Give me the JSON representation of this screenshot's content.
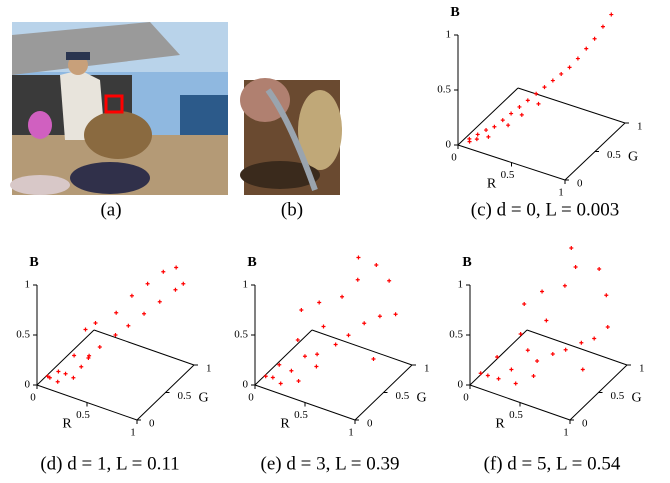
{
  "images": [
    {
      "caption": "(a)"
    },
    {
      "caption": "(b)"
    }
  ],
  "chart_data": [
    {
      "type": "scatter3d",
      "caption": "(c) d = 0, L = 0.003",
      "xlabel": "R",
      "ylabel": "G",
      "zlabel": "B",
      "color": "#ff0000",
      "xlim": [
        0,
        1
      ],
      "ylim": [
        0,
        1
      ],
      "zlim": [
        0,
        1
      ],
      "xticks": [
        0,
        0.5,
        1
      ],
      "yticks": [
        0,
        0.5,
        1
      ],
      "zticks": [
        0,
        0.5,
        1
      ],
      "points": [
        [
          0.05,
          0.1,
          0.02
        ],
        [
          0.1,
          0.15,
          0.05
        ],
        [
          0.15,
          0.2,
          0.08
        ],
        [
          0.2,
          0.25,
          0.1
        ],
        [
          0.25,
          0.3,
          0.15
        ],
        [
          0.3,
          0.35,
          0.2
        ],
        [
          0.35,
          0.4,
          0.25
        ],
        [
          0.4,
          0.45,
          0.3
        ],
        [
          0.45,
          0.5,
          0.35
        ],
        [
          0.5,
          0.55,
          0.4
        ],
        [
          0.55,
          0.6,
          0.45
        ],
        [
          0.6,
          0.65,
          0.5
        ],
        [
          0.65,
          0.7,
          0.55
        ],
        [
          0.7,
          0.75,
          0.62
        ],
        [
          0.75,
          0.8,
          0.7
        ],
        [
          0.8,
          0.85,
          0.78
        ],
        [
          0.85,
          0.9,
          0.88
        ],
        [
          0.9,
          0.95,
          0.98
        ],
        [
          0.12,
          0.1,
          0.04
        ],
        [
          0.08,
          0.05,
          0.03
        ],
        [
          0.2,
          0.15,
          0.06
        ],
        [
          0.3,
          0.3,
          0.12
        ],
        [
          0.4,
          0.35,
          0.22
        ],
        [
          0.5,
          0.45,
          0.3
        ]
      ]
    },
    {
      "type": "scatter3d",
      "caption": "(d) d = 1, L = 0.11",
      "xlabel": "R",
      "ylabel": "G",
      "zlabel": "B",
      "color": "#ff0000",
      "xlim": [
        0,
        1
      ],
      "ylim": [
        0,
        1
      ],
      "zlim": [
        0,
        1
      ],
      "xticks": [
        0,
        0.5,
        1
      ],
      "yticks": [
        0,
        0.5,
        1
      ],
      "zticks": [
        0,
        0.5,
        1
      ],
      "points": [
        [
          0.05,
          0.1,
          0.05
        ],
        [
          0.1,
          0.05,
          0.08
        ],
        [
          0.15,
          0.1,
          0.03
        ],
        [
          0.2,
          0.15,
          0.1
        ],
        [
          0.1,
          0.2,
          0.06
        ],
        [
          0.25,
          0.2,
          0.05
        ],
        [
          0.3,
          0.25,
          0.15
        ],
        [
          0.2,
          0.3,
          0.2
        ],
        [
          0.35,
          0.3,
          0.25
        ],
        [
          0.4,
          0.4,
          0.3
        ],
        [
          0.3,
          0.5,
          0.45
        ],
        [
          0.5,
          0.5,
          0.4
        ],
        [
          0.45,
          0.6,
          0.55
        ],
        [
          0.6,
          0.55,
          0.5
        ],
        [
          0.55,
          0.7,
          0.7
        ],
        [
          0.7,
          0.65,
          0.6
        ],
        [
          0.65,
          0.8,
          0.8
        ],
        [
          0.8,
          0.75,
          0.7
        ],
        [
          0.75,
          0.9,
          0.9
        ],
        [
          0.9,
          0.85,
          0.8
        ],
        [
          0.85,
          0.95,
          0.95
        ],
        [
          0.95,
          0.9,
          0.85
        ],
        [
          0.4,
          0.2,
          0.3
        ],
        [
          0.2,
          0.5,
          0.35
        ]
      ]
    },
    {
      "type": "scatter3d",
      "caption": "(e) d = 3, L = 0.39",
      "xlabel": "R",
      "ylabel": "G",
      "zlabel": "B",
      "color": "#ff0000",
      "xlim": [
        0,
        1
      ],
      "ylim": [
        0,
        1
      ],
      "zlim": [
        0,
        1
      ],
      "xticks": [
        0,
        0.5,
        1
      ],
      "yticks": [
        0,
        0.5,
        1
      ],
      "zticks": [
        0,
        0.5,
        1
      ],
      "points": [
        [
          0.05,
          0.1,
          0.05
        ],
        [
          0.15,
          0.05,
          0.1
        ],
        [
          0.2,
          0.1,
          0.03
        ],
        [
          0.25,
          0.2,
          0.12
        ],
        [
          0.1,
          0.25,
          0.1
        ],
        [
          0.35,
          0.15,
          0.08
        ],
        [
          0.3,
          0.35,
          0.2
        ],
        [
          0.2,
          0.4,
          0.3
        ],
        [
          0.45,
          0.3,
          0.3
        ],
        [
          0.4,
          0.5,
          0.45
        ],
        [
          0.3,
          0.6,
          0.6
        ],
        [
          0.55,
          0.45,
          0.35
        ],
        [
          0.5,
          0.65,
          0.7
        ],
        [
          0.65,
          0.5,
          0.45
        ],
        [
          0.6,
          0.75,
          0.85
        ],
        [
          0.75,
          0.6,
          0.55
        ],
        [
          0.55,
          0.85,
          1.0
        ],
        [
          0.85,
          0.7,
          0.6
        ],
        [
          0.7,
          0.9,
          0.95
        ],
        [
          0.95,
          0.8,
          0.6
        ],
        [
          0.8,
          0.95,
          0.8
        ],
        [
          0.5,
          0.2,
          0.25
        ],
        [
          0.15,
          0.55,
          0.5
        ],
        [
          0.9,
          0.5,
          0.3
        ]
      ]
    },
    {
      "type": "scatter3d",
      "caption": "(f) d = 5, L = 0.54",
      "xlabel": "R",
      "ylabel": "G",
      "zlabel": "B",
      "color": "#ff0000",
      "xlim": [
        0,
        1
      ],
      "ylim": [
        0,
        1
      ],
      "zlim": [
        0,
        1
      ],
      "xticks": [
        0,
        0.5,
        1
      ],
      "yticks": [
        0,
        0.5,
        1
      ],
      "zticks": [
        0,
        0.5,
        1
      ],
      "points": [
        [
          0.05,
          0.1,
          0.08
        ],
        [
          0.15,
          0.05,
          0.12
        ],
        [
          0.2,
          0.15,
          0.05
        ],
        [
          0.3,
          0.2,
          0.15
        ],
        [
          0.1,
          0.3,
          0.15
        ],
        [
          0.4,
          0.1,
          0.1
        ],
        [
          0.35,
          0.4,
          0.25
        ],
        [
          0.25,
          0.45,
          0.35
        ],
        [
          0.5,
          0.3,
          0.25
        ],
        [
          0.45,
          0.55,
          0.5
        ],
        [
          0.35,
          0.65,
          0.7
        ],
        [
          0.6,
          0.4,
          0.3
        ],
        [
          0.55,
          0.7,
          0.8
        ],
        [
          0.7,
          0.45,
          0.35
        ],
        [
          0.6,
          0.8,
          0.95
        ],
        [
          0.8,
          0.55,
          0.4
        ],
        [
          0.5,
          0.9,
          1.05
        ],
        [
          0.9,
          0.6,
          0.45
        ],
        [
          0.75,
          0.95,
          0.9
        ],
        [
          0.95,
          0.75,
          0.5
        ],
        [
          0.85,
          0.9,
          0.7
        ],
        [
          0.55,
          0.15,
          0.2
        ],
        [
          0.2,
          0.6,
          0.55
        ],
        [
          0.9,
          0.4,
          0.25
        ]
      ]
    }
  ]
}
